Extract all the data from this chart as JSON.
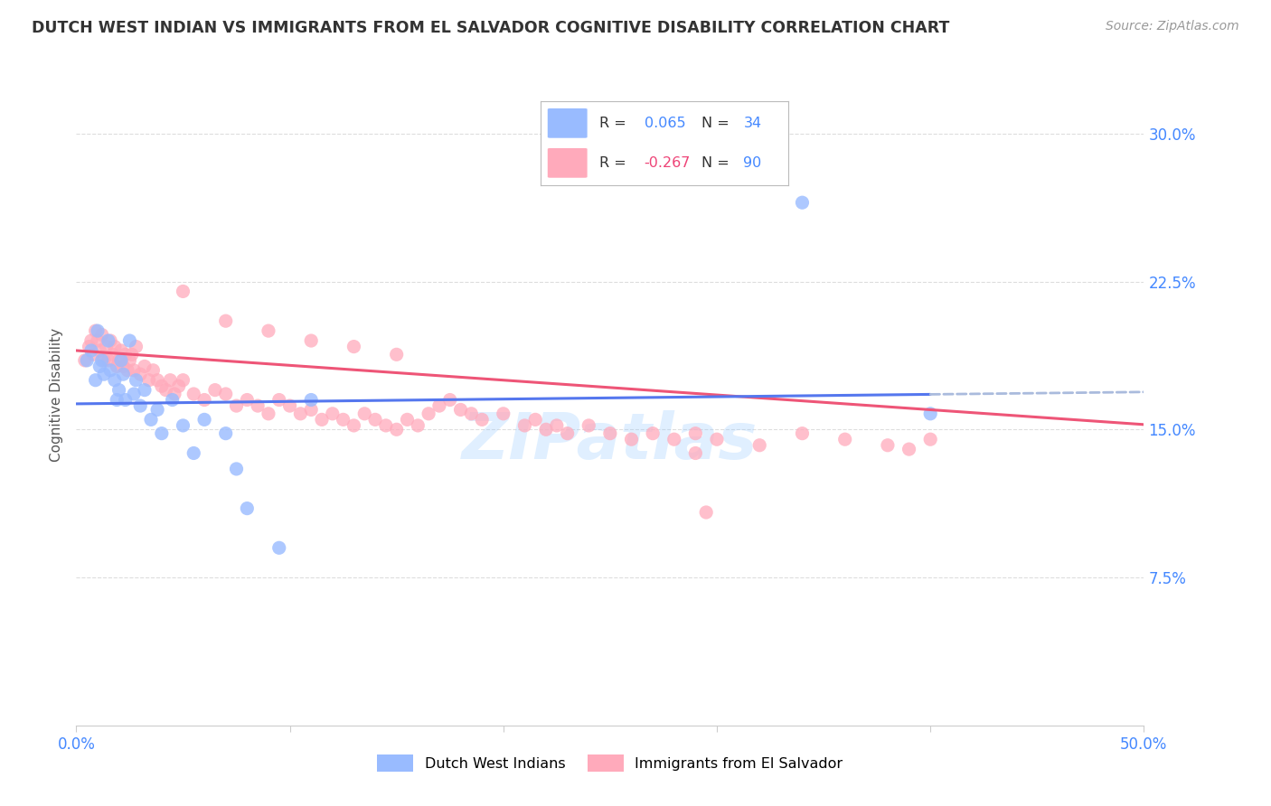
{
  "title": "DUTCH WEST INDIAN VS IMMIGRANTS FROM EL SALVADOR COGNITIVE DISABILITY CORRELATION CHART",
  "source": "Source: ZipAtlas.com",
  "ylabel": "Cognitive Disability",
  "ytick_labels": [
    "30.0%",
    "22.5%",
    "15.0%",
    "7.5%"
  ],
  "ytick_values": [
    0.3,
    0.225,
    0.15,
    0.075
  ],
  "xlim": [
    0.0,
    0.5
  ],
  "ylim": [
    0.0,
    0.335
  ],
  "legend_label1": "Dutch West Indians",
  "legend_label2": "Immigrants from El Salvador",
  "R1": 0.065,
  "N1": 34,
  "R2": -0.267,
  "N2": 90,
  "color_blue": "#99BBFF",
  "color_pink": "#FFAABB",
  "color_blue_line": "#5577EE",
  "color_pink_line": "#EE5577",
  "color_blue_dash": "#AABBDD",
  "color_blue_text": "#4488FF",
  "color_pink_text": "#EE4477",
  "watermark": "ZIPatlas",
  "background_color": "#FFFFFF",
  "grid_color": "#DDDDDD",
  "blue_scatter_x": [
    0.005,
    0.007,
    0.009,
    0.01,
    0.011,
    0.012,
    0.013,
    0.015,
    0.016,
    0.018,
    0.019,
    0.02,
    0.021,
    0.022,
    0.023,
    0.025,
    0.027,
    0.028,
    0.03,
    0.032,
    0.035,
    0.038,
    0.04,
    0.045,
    0.05,
    0.055,
    0.06,
    0.07,
    0.075,
    0.08,
    0.095,
    0.11,
    0.34,
    0.4
  ],
  "blue_scatter_y": [
    0.185,
    0.19,
    0.175,
    0.2,
    0.182,
    0.185,
    0.178,
    0.195,
    0.18,
    0.175,
    0.165,
    0.17,
    0.185,
    0.178,
    0.165,
    0.195,
    0.168,
    0.175,
    0.162,
    0.17,
    0.155,
    0.16,
    0.148,
    0.165,
    0.152,
    0.138,
    0.155,
    0.148,
    0.13,
    0.11,
    0.09,
    0.165,
    0.265,
    0.158
  ],
  "pink_scatter_x": [
    0.004,
    0.006,
    0.007,
    0.008,
    0.009,
    0.01,
    0.011,
    0.012,
    0.013,
    0.014,
    0.015,
    0.016,
    0.017,
    0.018,
    0.019,
    0.02,
    0.021,
    0.022,
    0.023,
    0.024,
    0.025,
    0.026,
    0.027,
    0.028,
    0.03,
    0.032,
    0.034,
    0.036,
    0.038,
    0.04,
    0.042,
    0.044,
    0.046,
    0.048,
    0.05,
    0.055,
    0.06,
    0.065,
    0.07,
    0.075,
    0.08,
    0.085,
    0.09,
    0.095,
    0.1,
    0.105,
    0.11,
    0.115,
    0.12,
    0.125,
    0.13,
    0.135,
    0.14,
    0.145,
    0.15,
    0.155,
    0.16,
    0.165,
    0.17,
    0.175,
    0.18,
    0.185,
    0.19,
    0.2,
    0.21,
    0.215,
    0.22,
    0.225,
    0.23,
    0.24,
    0.25,
    0.26,
    0.27,
    0.28,
    0.29,
    0.3,
    0.32,
    0.34,
    0.36,
    0.38,
    0.39,
    0.4,
    0.29,
    0.05,
    0.07,
    0.09,
    0.11,
    0.13,
    0.15,
    0.295
  ],
  "pink_scatter_y": [
    0.185,
    0.192,
    0.195,
    0.188,
    0.2,
    0.195,
    0.19,
    0.198,
    0.185,
    0.192,
    0.185,
    0.195,
    0.188,
    0.192,
    0.182,
    0.185,
    0.19,
    0.182,
    0.188,
    0.18,
    0.185,
    0.188,
    0.18,
    0.192,
    0.178,
    0.182,
    0.175,
    0.18,
    0.175,
    0.172,
    0.17,
    0.175,
    0.168,
    0.172,
    0.175,
    0.168,
    0.165,
    0.17,
    0.168,
    0.162,
    0.165,
    0.162,
    0.158,
    0.165,
    0.162,
    0.158,
    0.16,
    0.155,
    0.158,
    0.155,
    0.152,
    0.158,
    0.155,
    0.152,
    0.15,
    0.155,
    0.152,
    0.158,
    0.162,
    0.165,
    0.16,
    0.158,
    0.155,
    0.158,
    0.152,
    0.155,
    0.15,
    0.152,
    0.148,
    0.152,
    0.148,
    0.145,
    0.148,
    0.145,
    0.148,
    0.145,
    0.142,
    0.148,
    0.145,
    0.142,
    0.14,
    0.145,
    0.138,
    0.22,
    0.205,
    0.2,
    0.195,
    0.192,
    0.188,
    0.108
  ],
  "blue_line_x0": 0.0,
  "blue_line_x1": 0.5,
  "blue_intercept": 0.163,
  "blue_slope": 0.012,
  "pink_intercept": 0.19,
  "pink_slope": -0.075
}
